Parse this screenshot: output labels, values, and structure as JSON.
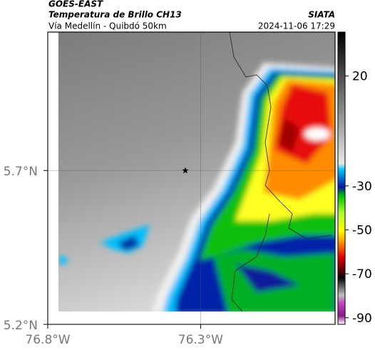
{
  "header": {
    "title": "GOES-EAST",
    "subtitle": "Temperatura de Brillo CH13",
    "source": "SIATA",
    "route": "Vía Medellín - Quibdó 50km",
    "datetime": "2024-11-06 17:29"
  },
  "map": {
    "latlim": [
      5.2,
      6.15
    ],
    "lonlim": [
      -76.8,
      -75.86
    ],
    "yticks": [
      {
        "value": 5.7,
        "label": "5.7°N"
      },
      {
        "value": 5.2,
        "label": "5.2°N"
      }
    ],
    "xticks": [
      {
        "value": -76.8,
        "label": "76.8°W"
      },
      {
        "value": -76.3,
        "label": "76.3°W"
      }
    ],
    "grid": true,
    "marker": {
      "lon": -76.35,
      "lat": 5.7
    }
  },
  "colorbar": {
    "lim": [
      40,
      -93
    ],
    "ticks": [
      20,
      -30,
      -50,
      -70,
      -90
    ]
  }
}
